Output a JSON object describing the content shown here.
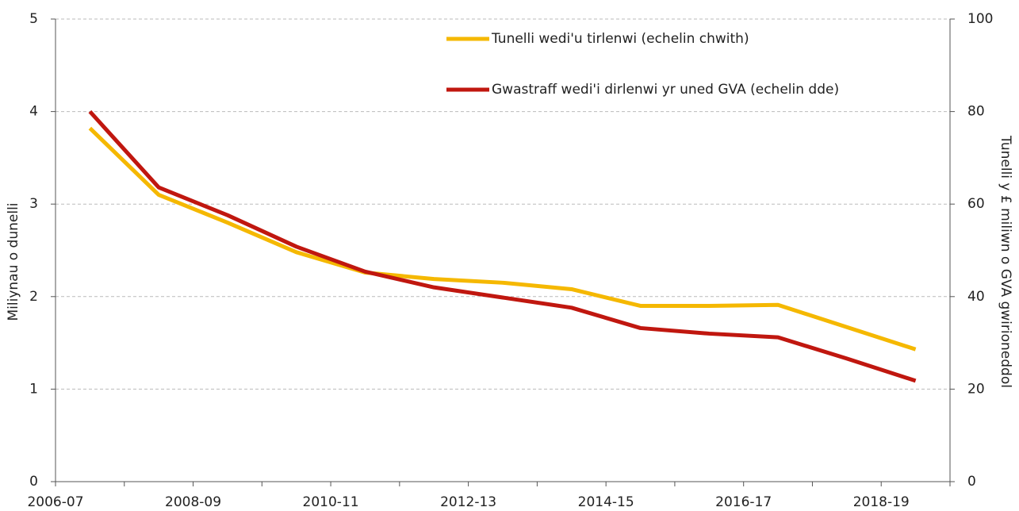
{
  "chart_data": {
    "type": "line",
    "categories": [
      "2006-07",
      null,
      "2008-09",
      null,
      "2010-11",
      null,
      "2012-13",
      null,
      "2014-15",
      null,
      "2016-17",
      null,
      "2018-19"
    ],
    "y_label": "Miliynau o dunelli",
    "y2_label": "Tunelli y £ miliwn o GVA gwirioneddol",
    "ylim": [
      0,
      5
    ],
    "yticks": [
      0,
      1,
      2,
      3,
      4,
      5
    ],
    "y2lim": [
      0,
      100
    ],
    "y2ticks": [
      0,
      20,
      40,
      60,
      80,
      100
    ],
    "grid": true,
    "legend": "top-right",
    "series": [
      {
        "name": "Tunelli wedi'u tirlenwi (echelin chwith)",
        "color": "#f5b800",
        "values": [
          3.82,
          3.1,
          2.8,
          2.48,
          2.26,
          2.19,
          2.15,
          2.08,
          1.9,
          1.9,
          1.91,
          1.67,
          1.43
        ]
      },
      {
        "name": "Gwastraff wedi'i dirlenwi yr uned GVA (echelin dde)",
        "color": "#c0170f",
        "axis": "y2",
        "values": [
          80,
          63.6,
          57.6,
          50.8,
          45.4,
          42,
          39.8,
          37.6,
          33.2,
          32,
          31.2,
          26.6,
          21.8
        ]
      }
    ]
  }
}
